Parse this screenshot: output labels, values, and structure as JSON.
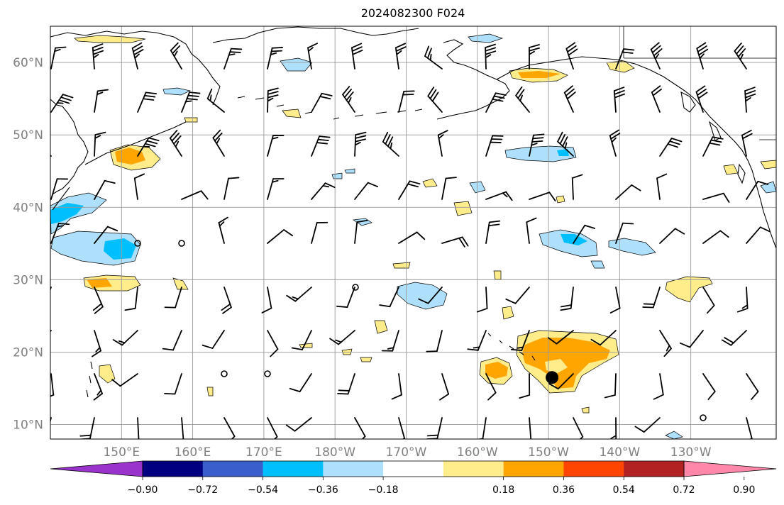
{
  "title": "2024082300 F024",
  "axes": {
    "lon_labels": [
      "150°E",
      "160°E",
      "170°E",
      "180°W",
      "170°W",
      "160°W",
      "150°W",
      "140°W",
      "130°W"
    ],
    "lon_values": [
      150,
      160,
      170,
      180,
      190,
      200,
      210,
      220,
      230
    ],
    "lat_labels": [
      "60°N",
      "50°N",
      "40°N",
      "30°N",
      "20°N",
      "10°N"
    ],
    "lat_values": [
      60,
      50,
      40,
      30,
      20,
      10
    ],
    "lon_range": [
      140,
      242
    ],
    "lat_range": [
      8,
      65
    ],
    "grid": true,
    "tick_label_color": "#808080"
  },
  "colorbar": {
    "tick_labels": [
      "−0.90",
      "−0.72",
      "−0.54",
      "−0.36",
      "−0.18",
      "0.18",
      "0.36",
      "0.54",
      "0.72",
      "0.90"
    ],
    "boundaries": [
      -0.9,
      -0.72,
      -0.54,
      -0.36,
      -0.18,
      0.18,
      0.36,
      0.54,
      0.72,
      0.9
    ],
    "colors": [
      "#9933cc",
      "#000080",
      "#3a5fcd",
      "#00bfff",
      "#aee0fb",
      "#ffffff",
      "#ffec8b",
      "#ffa500",
      "#ff4500",
      "#b22222",
      "#ff88aa"
    ],
    "extend": "both"
  },
  "features": {
    "coastline_color": "#000000",
    "field_colors": {
      "light_blue": "#aee0fb",
      "blue": "#00bfff",
      "yellow": "#ffec8b",
      "orange": "#ffa500"
    },
    "marker": {
      "lon": 210.5,
      "lat": 16.5,
      "color": "#000000"
    }
  }
}
